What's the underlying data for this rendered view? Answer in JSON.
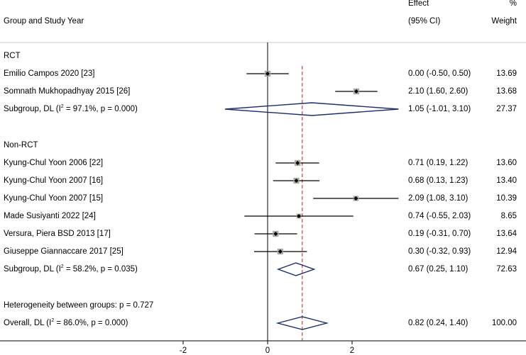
{
  "chart_data": {
    "type": "forest",
    "header": {
      "col1": "Group and Study Year",
      "effect_line1": "Effect",
      "effect_line2": "(95% CI)",
      "weight_line1": "%",
      "weight_line2": "Weight"
    },
    "xaxis": {
      "ticks": [
        -2,
        0,
        2
      ],
      "xlim": [
        -6.3,
        6.1
      ],
      "null_line": 0,
      "overall_line": 0.82
    },
    "groups": [
      {
        "label": "RCT",
        "studies": [
          {
            "label": "Emilio Campos 2020 [23]",
            "es": 0.0,
            "lo": -0.5,
            "hi": 0.5,
            "ci_text": "0.00 (-0.50, 0.50)",
            "weight": "13.69"
          },
          {
            "label": "Somnath Mukhopadhyay 2015 [26]",
            "es": 2.1,
            "lo": 1.6,
            "hi": 2.6,
            "ci_text": "2.10 (1.60, 2.60)",
            "weight": "13.68"
          }
        ],
        "subtotal": {
          "label_prefix": "Subgroup, DL (I",
          "label_sup": "2",
          "label_suffix": " = 97.1%, p = 0.000)",
          "es": 1.05,
          "lo": -1.01,
          "hi": 3.1,
          "ci_text": "1.05 (-1.01, 3.10)",
          "weight": "27.37"
        }
      },
      {
        "label": "Non-RCT",
        "studies": [
          {
            "label": "Kyung-Chul Yoon 2006 [22]",
            "es": 0.71,
            "lo": 0.19,
            "hi": 1.22,
            "ci_text": "0.71 (0.19, 1.22)",
            "weight": "13.60"
          },
          {
            "label": "Kyung-Chul Yoon 2007 [16]",
            "es": 0.68,
            "lo": 0.13,
            "hi": 1.23,
            "ci_text": "0.68 (0.13, 1.23)",
            "weight": "13.40"
          },
          {
            "label": "Kyung-Chul Yoon 2007 [15]",
            "es": 2.09,
            "lo": 1.08,
            "hi": 3.1,
            "ci_text": "2.09 (1.08, 3.10)",
            "weight": "10.39"
          },
          {
            "label": "Made Susiyanti 2022 [24]",
            "es": 0.74,
            "lo": -0.55,
            "hi": 2.03,
            "ci_text": "0.74 (-0.55, 2.03)",
            "weight": "8.65"
          },
          {
            "label": "Versura, Piera BSD 2013 [17]",
            "es": 0.19,
            "lo": -0.31,
            "hi": 0.7,
            "ci_text": "0.19 (-0.31, 0.70)",
            "weight": "13.64"
          },
          {
            "label": "Giuseppe Giannaccare 2017 [25]",
            "es": 0.3,
            "lo": -0.32,
            "hi": 0.93,
            "ci_text": "0.30 (-0.32, 0.93)",
            "weight": "12.94"
          }
        ],
        "subtotal": {
          "label_prefix": "Subgroup, DL (I",
          "label_sup": "2",
          "label_suffix": " = 58.2%, p = 0.035)",
          "es": 0.67,
          "lo": 0.25,
          "hi": 1.1,
          "ci_text": "0.67 (0.25, 1.10)",
          "weight": "72.63"
        }
      }
    ],
    "heterogeneity_text": "Heterogeneity between groups: p = 0.727",
    "overall": {
      "label_prefix": "Overall, DL (I",
      "label_sup": "2",
      "label_suffix": " = 86.0%, p = 0.000)",
      "es": 0.82,
      "lo": 0.24,
      "hi": 1.4,
      "ci_text": "0.82 (0.24, 1.40)",
      "weight": "100.00"
    },
    "colors": {
      "diamond": "#1f2d6b",
      "overall_line": "#b22222",
      "box": "#a9a9a9",
      "rule": "#c8c8c8"
    }
  }
}
